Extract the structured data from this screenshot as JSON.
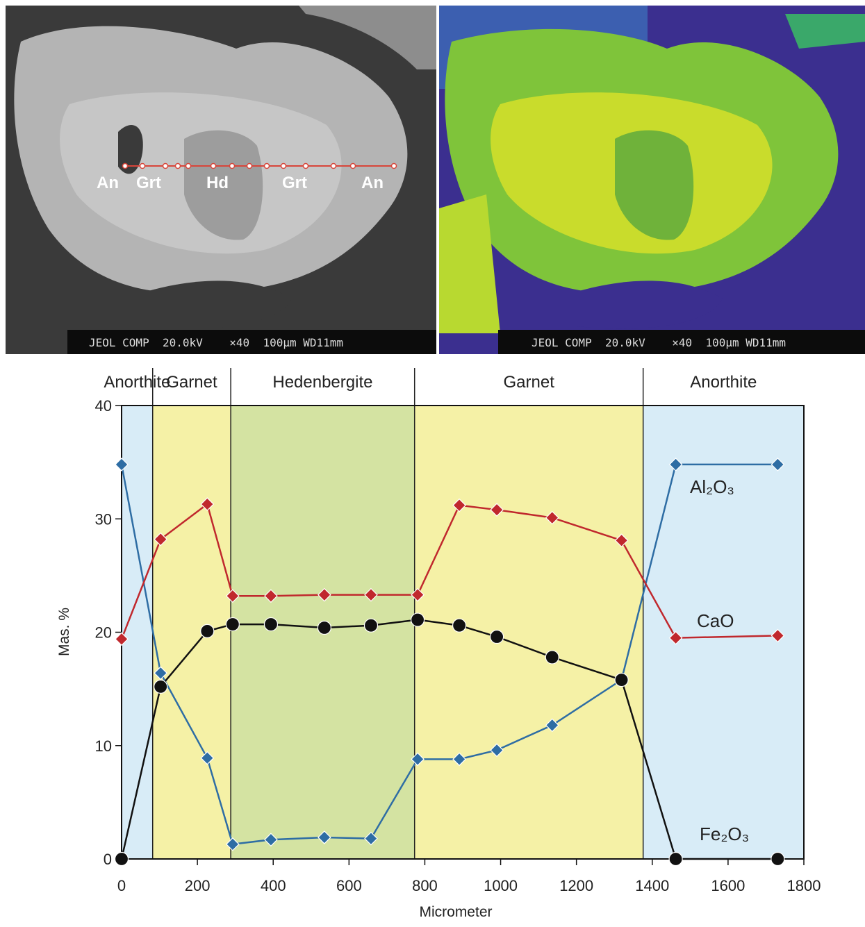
{
  "images": [
    {
      "labels": [
        "An",
        "Grt",
        "Hd",
        "Grt",
        "An"
      ],
      "caption": "JEOL COMP  20.0kV    ×40  100μm WD11mm"
    },
    {
      "caption": "JEOL COMP  20.0kV    ×40  100μm WD11mm"
    }
  ],
  "chart_data": {
    "type": "line",
    "x_label": "Micrometer",
    "y_label": "Mas. %",
    "x": [
      0,
      103,
      226,
      293,
      394,
      535,
      658,
      781,
      891,
      990,
      1136,
      1319,
      1462,
      1731
    ],
    "series": [
      {
        "name": "Al₂O₃",
        "color": "#2e6da4",
        "marker": "diamond",
        "values": [
          34.8,
          16.4,
          8.9,
          1.3,
          1.7,
          1.9,
          1.8,
          8.8,
          8.8,
          9.6,
          11.8,
          15.8,
          34.8,
          34.8
        ]
      },
      {
        "name": "CaO",
        "color": "#c0282d",
        "marker": "diamond",
        "values": [
          19.4,
          28.2,
          31.3,
          23.2,
          23.2,
          23.3,
          23.3,
          23.3,
          31.2,
          30.8,
          30.1,
          28.1,
          19.5,
          19.7
        ]
      },
      {
        "name": "Fe₂O₃",
        "color": "#111111",
        "marker": "circle",
        "values": [
          0,
          15.2,
          20.1,
          20.7,
          20.7,
          20.4,
          20.6,
          21.1,
          20.6,
          19.6,
          17.8,
          15.8,
          0,
          0
        ]
      }
    ],
    "zones": [
      {
        "label": "Anorthite",
        "start": 0,
        "end": 82,
        "color": "#d8ecf7"
      },
      {
        "label": "Garnet",
        "start": 82,
        "end": 288,
        "color": "#f5f1a6"
      },
      {
        "label": "Hedenbergite",
        "start": 288,
        "end": 773,
        "color": "#d4e3a2"
      },
      {
        "label": "Garnet",
        "start": 773,
        "end": 1376,
        "color": "#f5f1a6"
      },
      {
        "label": "Anorthite",
        "start": 1376,
        "end": 1800,
        "color": "#d8ecf7"
      }
    ],
    "xlim": [
      0,
      1800
    ],
    "xticks": [
      0,
      200,
      400,
      600,
      800,
      1000,
      1200,
      1400,
      1600,
      1800
    ],
    "ylim": [
      0,
      40
    ],
    "yticks": [
      0,
      10,
      20,
      30,
      40
    ]
  }
}
